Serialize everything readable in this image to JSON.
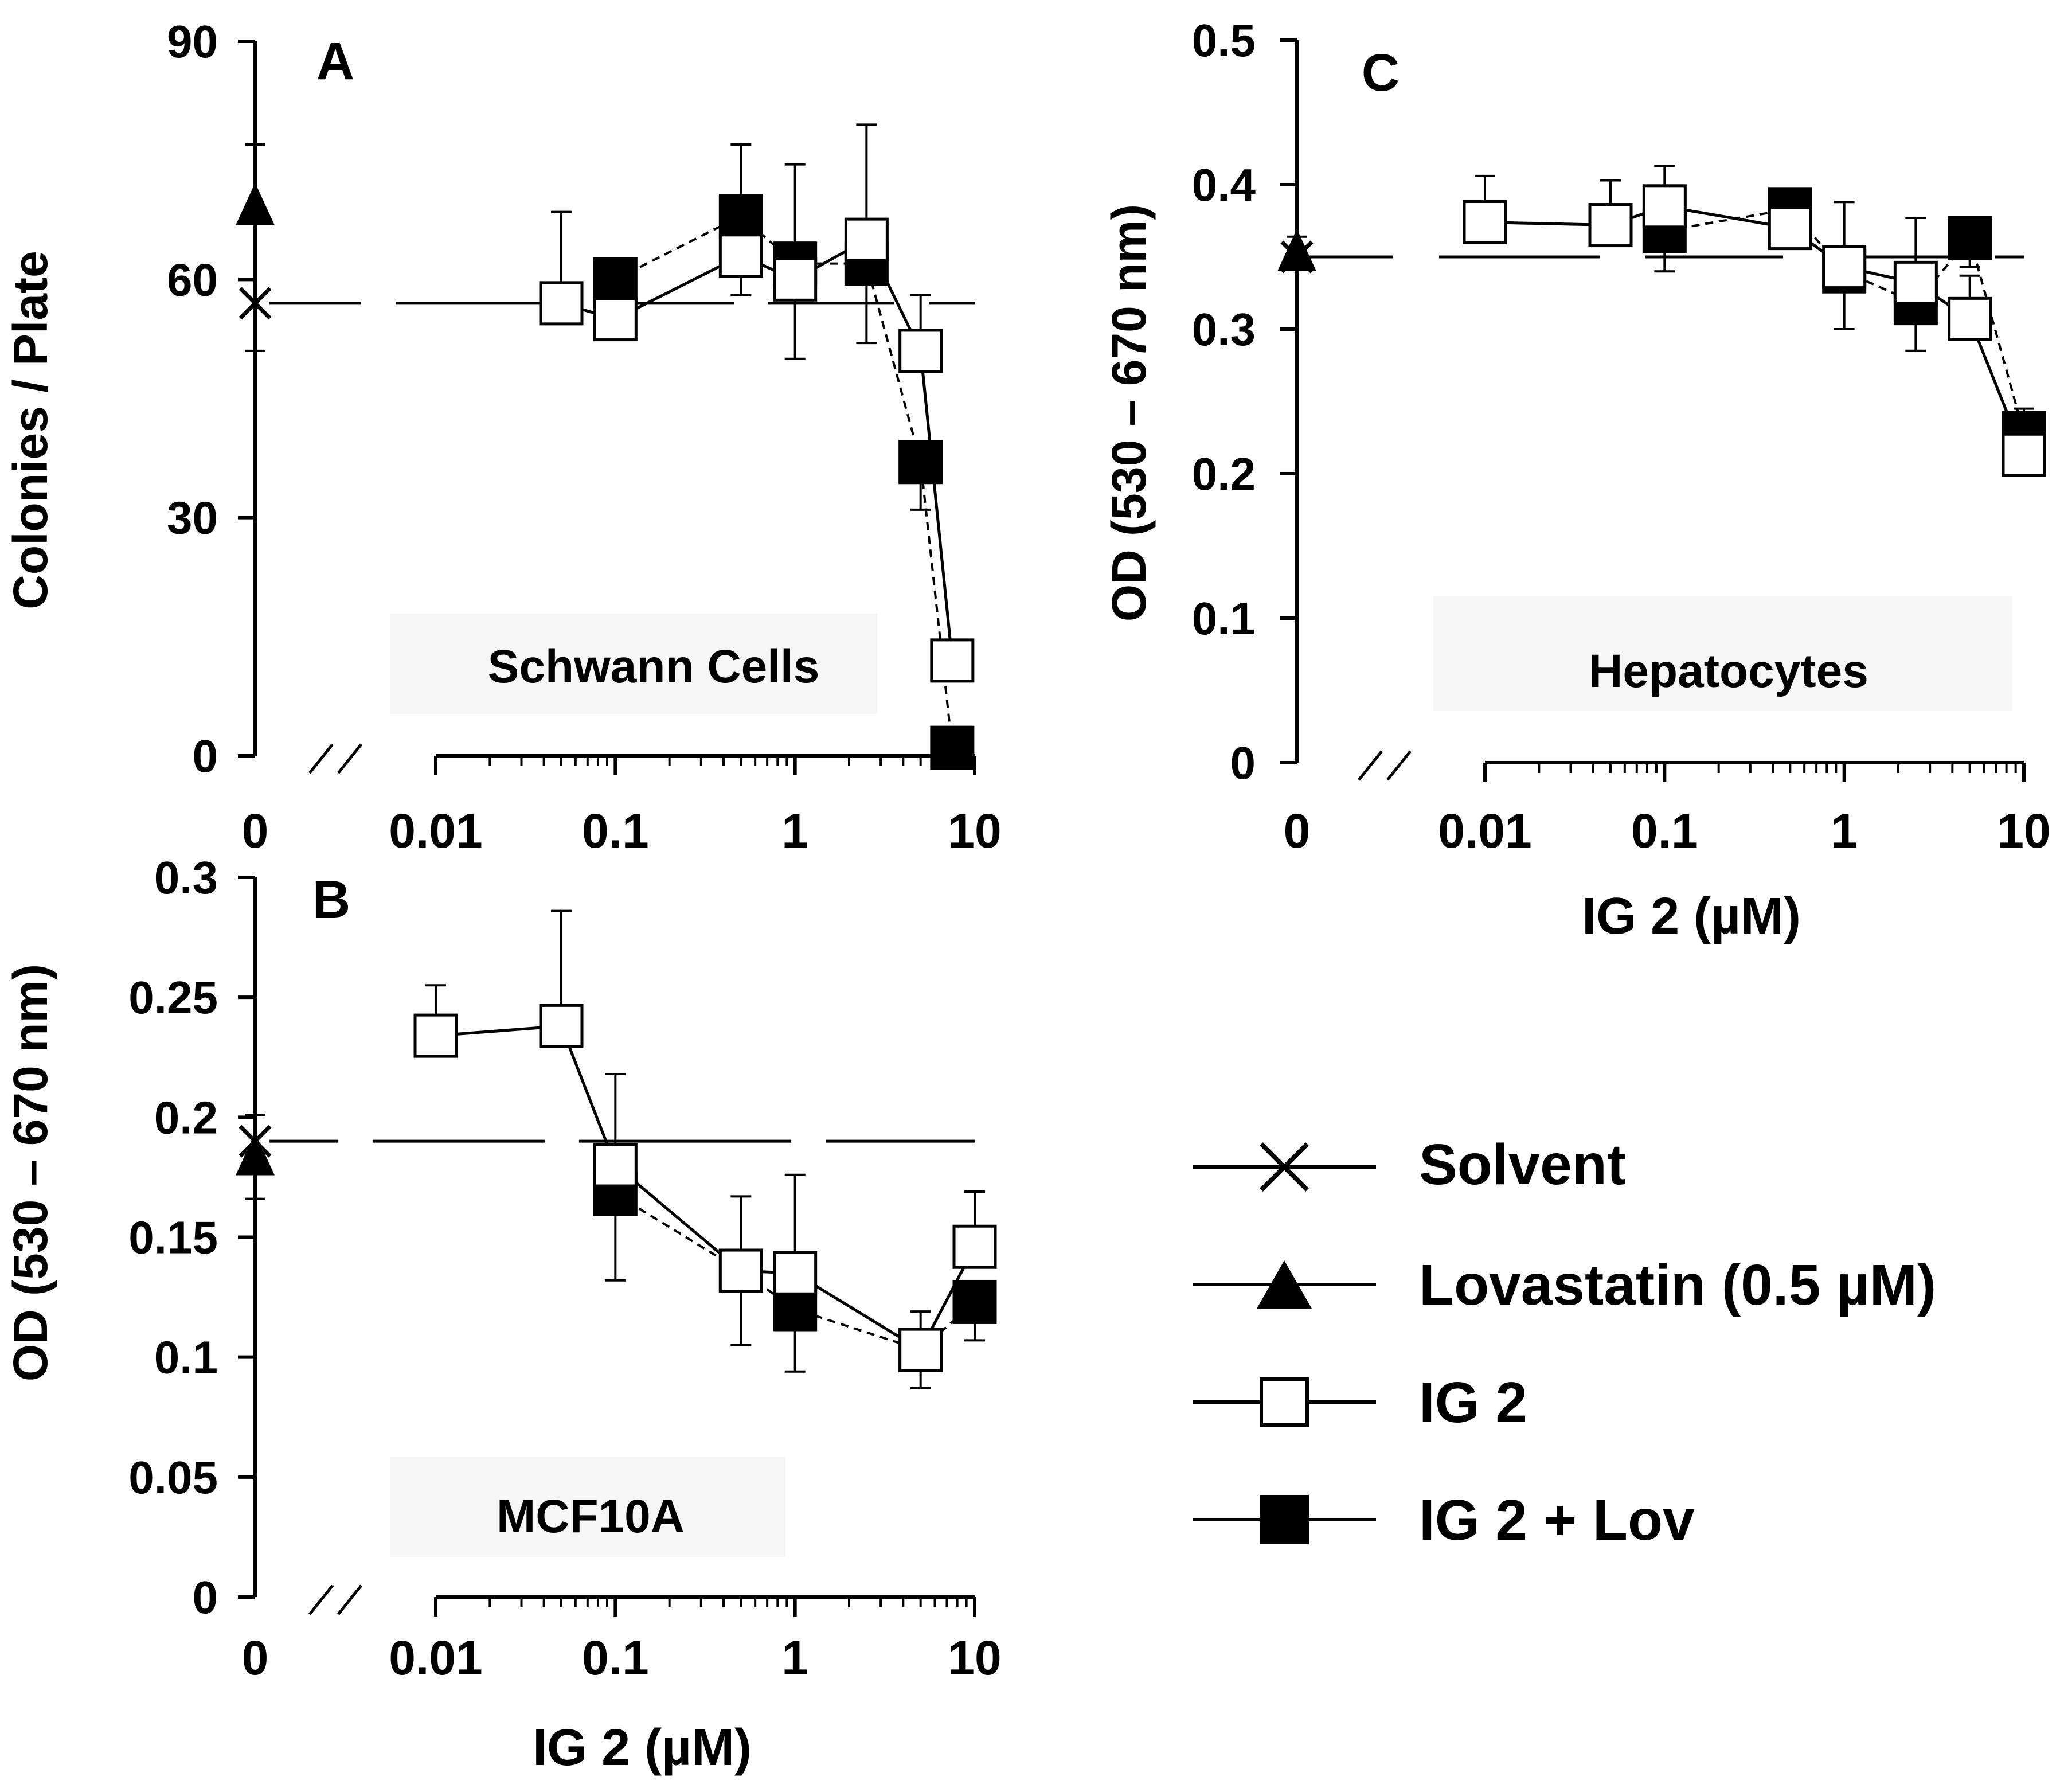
{
  "chart_data": [
    {
      "panel": "A",
      "type": "line",
      "label": "A",
      "caption": "Schwann Cells",
      "ylabel": "Colonies / Plate",
      "xlabel": "",
      "ylim": [
        0,
        90
      ],
      "yticks": [
        0,
        30,
        60,
        90
      ],
      "ytick_labels": [
        "0",
        "30",
        "60",
        "90"
      ],
      "xscale": "log",
      "xlim": [
        0.01,
        10
      ],
      "xticks": [
        0.01,
        0.1,
        1,
        10
      ],
      "xtick_labels": [
        "0.01",
        "0.1",
        "1",
        "10"
      ],
      "zero_label": "0",
      "solvent": {
        "value": 57,
        "err": 6
      },
      "lovastatin": {
        "value": 69,
        "err": 8
      },
      "series": [
        {
          "name": "IG 2",
          "x": [
            0.05,
            0.1,
            0.5,
            1,
            2.5,
            5,
            7.5
          ],
          "y": [
            57,
            55,
            63,
            60,
            65,
            51,
            12
          ],
          "err": [
            11.5,
            6.5,
            14,
            14.5,
            14.5,
            7,
            0
          ]
        },
        {
          "name": "IG 2 + Lov",
          "x": [
            0.1,
            0.5,
            1,
            2.5,
            5,
            7.5
          ],
          "y": [
            60,
            68,
            62,
            62,
            37,
            1
          ],
          "err": [
            5,
            10,
            12,
            10,
            6,
            0
          ]
        }
      ]
    },
    {
      "panel": "B",
      "type": "line",
      "label": "B",
      "caption": "MCF10A",
      "ylabel": "OD (530 – 670 nm)",
      "xlabel": "IG 2 (µM)",
      "ylim": [
        0,
        0.3
      ],
      "yticks": [
        0,
        0.05,
        0.1,
        0.15,
        0.2,
        0.25,
        0.3
      ],
      "ytick_labels": [
        "0",
        "0.05",
        "0.1",
        "0.15",
        "0.2",
        "0.25",
        "0.3"
      ],
      "xscale": "log",
      "xlim": [
        0.01,
        10
      ],
      "xticks": [
        0.01,
        0.1,
        1,
        10
      ],
      "xtick_labels": [
        "0.01",
        "0.1",
        "1",
        "10"
      ],
      "zero_label": "0",
      "solvent": {
        "value": 0.19,
        "err": 0.024
      },
      "lovastatin": {
        "value": 0.183,
        "err": 0.018
      },
      "series": [
        {
          "name": "IG 2",
          "x": [
            0.01,
            0.05,
            0.1,
            0.5,
            1,
            5,
            10
          ],
          "y": [
            0.234,
            0.238,
            0.18,
            0.136,
            0.135,
            0.103,
            0.146
          ],
          "err": [
            0.021,
            0.048,
            0.038,
            0.031,
            0.041,
            0.016,
            0.023
          ]
        },
        {
          "name": "IG 2 + Lov",
          "x": [
            0.1,
            0.5,
            1,
            5,
            10
          ],
          "y": [
            0.168,
            0.136,
            0.12,
            0.103,
            0.123
          ],
          "err": [
            0.036,
            0.031,
            0.026,
            0.016,
            0.016
          ]
        }
      ]
    },
    {
      "panel": "C",
      "type": "line",
      "label": "C",
      "caption": "Hepatocytes",
      "ylabel": "OD (530 – 670 nm)",
      "xlabel": "IG 2 (µM)",
      "ylim": [
        0,
        0.5
      ],
      "yticks": [
        0,
        0.1,
        0.2,
        0.3,
        0.4,
        0.5
      ],
      "ytick_labels": [
        "0",
        "0.1",
        "0.2",
        "0.3",
        "0.4",
        "0.5"
      ],
      "xscale": "log",
      "xlim": [
        0.01,
        10
      ],
      "xticks": [
        0.01,
        0.1,
        1,
        10
      ],
      "xtick_labels": [
        "0.01",
        "0.1",
        "1",
        "10"
      ],
      "zero_label": "0",
      "solvent": {
        "value": 0.35,
        "err": 0.009
      },
      "lovastatin": {
        "value": 0.352,
        "err": 0.012
      },
      "series": [
        {
          "name": "IG 2",
          "x": [
            0.01,
            0.05,
            0.1,
            0.5,
            1,
            2.5,
            5,
            10
          ],
          "y": [
            0.374,
            0.372,
            0.385,
            0.37,
            0.343,
            0.332,
            0.307,
            0.213
          ],
          "err": [
            0.032,
            0.031,
            0.028,
            0.012,
            0.045,
            0.045,
            0.03,
            0.032
          ]
        },
        {
          "name": "IG 2 + Lov",
          "x": [
            0.1,
            0.5,
            1,
            2.5,
            5,
            10
          ],
          "y": [
            0.368,
            0.383,
            0.34,
            0.318,
            0.363,
            0.228
          ],
          "err": [
            0.028,
            0.012,
            0.04,
            0.033,
            0.02,
            0.018
          ]
        }
      ]
    }
  ],
  "legend": {
    "items": [
      {
        "label": "Solvent",
        "marker": "x"
      },
      {
        "label": "Lovastatin (0.5 µM)",
        "marker": "triangle"
      },
      {
        "label": "IG 2",
        "marker": "open-square"
      },
      {
        "label": "IG 2 + Lov",
        "marker": "filled-square"
      }
    ]
  },
  "colors": {
    "ink": "#000000",
    "background": "#ffffff",
    "caption_bg": "#f6f6f6"
  }
}
